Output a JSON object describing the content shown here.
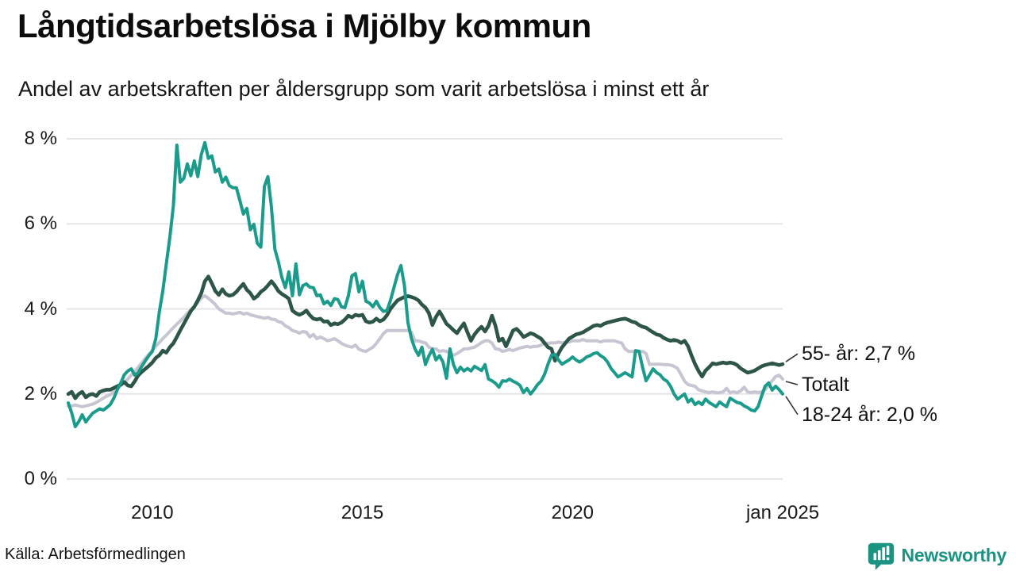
{
  "chart_data": {
    "type": "line",
    "title": "Långtidsarbetslösa i Mjölby kommun",
    "subtitle": "Andel av arbetskraften per åldersgrupp som varit arbetslösa i minst ett år",
    "unit": "%",
    "x_start_year": 2008,
    "x_end_year": 2025,
    "points_per_year": 12,
    "ylim": [
      0,
      8
    ],
    "grid": "horizontal",
    "y_axis_ticks": [
      {
        "label": "0 %",
        "value": 0
      },
      {
        "label": "2 %",
        "value": 2
      },
      {
        "label": "4 %",
        "value": 4
      },
      {
        "label": "6 %",
        "value": 6
      },
      {
        "label": "8 %",
        "value": 8
      }
    ],
    "x_axis_ticks": [
      {
        "label": "2010",
        "year": 2010
      },
      {
        "label": "2015",
        "year": 2015
      },
      {
        "label": "2020",
        "year": 2020
      },
      {
        "label": "jan 2025",
        "year": 2025
      }
    ],
    "series": [
      {
        "name": "Totalt",
        "color": "#c7c5d2",
        "values": [
          1.72,
          1.72,
          1.74,
          1.72,
          1.7,
          1.72,
          1.74,
          1.76,
          1.8,
          1.85,
          1.9,
          1.95,
          1.98,
          2.05,
          2.13,
          2.2,
          2.26,
          2.35,
          2.44,
          2.53,
          2.63,
          2.73,
          2.84,
          2.93,
          3.02,
          3.12,
          3.21,
          3.3,
          3.38,
          3.47,
          3.56,
          3.64,
          3.72,
          3.8,
          3.9,
          3.98,
          4.06,
          4.15,
          4.25,
          4.31,
          4.25,
          4.18,
          4.1,
          4.0,
          3.95,
          3.9,
          3.9,
          3.88,
          3.9,
          3.92,
          3.88,
          3.9,
          3.86,
          3.84,
          3.82,
          3.8,
          3.78,
          3.8,
          3.76,
          3.75,
          3.7,
          3.68,
          3.6,
          3.56,
          3.49,
          3.47,
          3.43,
          3.47,
          3.45,
          3.34,
          3.4,
          3.3,
          3.34,
          3.3,
          3.25,
          3.27,
          3.3,
          3.25,
          3.19,
          3.15,
          3.12,
          3.1,
          3.15,
          3.05,
          3.02,
          3.0,
          3.05,
          3.1,
          3.19,
          3.3,
          3.42,
          3.49,
          3.49,
          3.49,
          3.49,
          3.49,
          3.49,
          3.49,
          3.45,
          3.25,
          3.25,
          3.22,
          3.2,
          3.1,
          3.06,
          3.06,
          3.0,
          3.02,
          3.0,
          2.97,
          2.91,
          2.95,
          3.0,
          3.06,
          3.06,
          3.08,
          3.1,
          3.15,
          3.21,
          3.25,
          3.25,
          3.2,
          3.06,
          3.05,
          3.0,
          3.02,
          3.05,
          3.02,
          3.05,
          3.08,
          3.1,
          3.12,
          3.1,
          3.12,
          3.12,
          3.15,
          3.19,
          3.19,
          3.2,
          3.2,
          3.22,
          3.2,
          3.22,
          3.22,
          3.25,
          3.25,
          3.25,
          3.28,
          3.25,
          3.25,
          3.25,
          3.25,
          3.22,
          3.25,
          3.25,
          3.25,
          3.25,
          3.22,
          3.2,
          3.06,
          3.0,
          3.0,
          3.0,
          3.0,
          3.0,
          2.95,
          2.69,
          2.7,
          2.7,
          2.7,
          2.69,
          2.69,
          2.68,
          2.65,
          2.6,
          2.45,
          2.3,
          2.22,
          2.2,
          2.18,
          2.1,
          2.07,
          2.05,
          2.03,
          2.05,
          2.03,
          2.03,
          2.05,
          2.13,
          2.03,
          2.05,
          2.03,
          2.07,
          2.16,
          2.05,
          2.03,
          2.05,
          2.03,
          2.05,
          2.1,
          2.2,
          2.31,
          2.41,
          2.44,
          2.35
        ]
      },
      {
        "name": "55- år",
        "color": "#2d5548",
        "values": [
          2.0,
          2.05,
          1.9,
          2.0,
          2.05,
          1.92,
          1.98,
          2.0,
          1.95,
          2.05,
          2.08,
          2.1,
          2.1,
          2.14,
          2.18,
          2.22,
          2.28,
          2.2,
          2.18,
          2.3,
          2.44,
          2.52,
          2.59,
          2.66,
          2.74,
          2.85,
          2.91,
          3.02,
          2.97,
          3.1,
          3.19,
          3.34,
          3.5,
          3.65,
          3.8,
          3.95,
          4.05,
          4.2,
          4.37,
          4.65,
          4.76,
          4.6,
          4.42,
          4.33,
          4.46,
          4.35,
          4.31,
          4.33,
          4.4,
          4.5,
          4.59,
          4.45,
          4.37,
          4.24,
          4.3,
          4.4,
          4.46,
          4.55,
          4.65,
          4.55,
          4.42,
          4.35,
          4.3,
          4.24,
          3.96,
          3.9,
          3.86,
          3.9,
          3.96,
          3.85,
          3.77,
          3.75,
          3.77,
          3.7,
          3.71,
          3.62,
          3.66,
          3.64,
          3.68,
          3.75,
          3.84,
          3.8,
          3.86,
          3.84,
          3.86,
          3.71,
          3.68,
          3.7,
          3.77,
          3.71,
          3.75,
          3.85,
          4.0,
          4.1,
          4.2,
          4.24,
          4.28,
          4.3,
          4.28,
          4.25,
          4.2,
          4.1,
          4.03,
          3.9,
          3.62,
          3.81,
          3.94,
          3.8,
          3.65,
          3.58,
          3.5,
          3.43,
          3.55,
          3.66,
          3.45,
          3.25,
          3.4,
          3.5,
          3.58,
          3.47,
          3.6,
          3.84,
          3.6,
          3.25,
          3.3,
          3.12,
          3.3,
          3.49,
          3.53,
          3.45,
          3.34,
          3.38,
          3.43,
          3.4,
          3.35,
          3.3,
          3.2,
          3.1,
          3.06,
          2.78,
          2.95,
          3.1,
          3.2,
          3.3,
          3.35,
          3.4,
          3.42,
          3.45,
          3.5,
          3.55,
          3.6,
          3.62,
          3.6,
          3.65,
          3.68,
          3.7,
          3.72,
          3.74,
          3.76,
          3.77,
          3.74,
          3.7,
          3.68,
          3.62,
          3.58,
          3.56,
          3.5,
          3.45,
          3.4,
          3.38,
          3.32,
          3.28,
          3.25,
          3.27,
          3.25,
          3.2,
          3.25,
          3.12,
          2.9,
          2.7,
          2.54,
          2.41,
          2.55,
          2.63,
          2.72,
          2.7,
          2.72,
          2.74,
          2.72,
          2.74,
          2.72,
          2.68,
          2.6,
          2.55,
          2.5,
          2.52,
          2.55,
          2.6,
          2.65,
          2.68,
          2.7,
          2.72,
          2.7,
          2.68,
          2.7
        ]
      },
      {
        "name": "18-24 år",
        "color": "#1a9b8b",
        "values": [
          1.79,
          1.55,
          1.23,
          1.35,
          1.51,
          1.34,
          1.45,
          1.55,
          1.6,
          1.65,
          1.62,
          1.68,
          1.75,
          1.9,
          2.1,
          2.26,
          2.45,
          2.54,
          2.59,
          2.44,
          2.5,
          2.65,
          2.78,
          2.9,
          3.0,
          3.3,
          3.93,
          4.42,
          5.06,
          5.67,
          6.42,
          7.85,
          6.98,
          7.07,
          7.41,
          7.13,
          7.48,
          7.11,
          7.63,
          7.91,
          7.54,
          7.6,
          7.22,
          7.29,
          6.98,
          7.1,
          6.9,
          6.85,
          6.85,
          6.55,
          6.23,
          6.36,
          5.86,
          5.99,
          5.54,
          5.45,
          6.88,
          7.11,
          6.4,
          5.4,
          5.11,
          4.74,
          4.5,
          4.87,
          4.31,
          5.06,
          4.33,
          4.55,
          4.59,
          4.51,
          4.5,
          4.31,
          4.33,
          4.12,
          4.18,
          4.08,
          4.24,
          4.22,
          4.05,
          4.03,
          4.31,
          4.78,
          4.83,
          4.4,
          4.65,
          4.18,
          4.14,
          4.05,
          4.18,
          4.03,
          3.94,
          3.96,
          4.2,
          4.5,
          4.8,
          5.02,
          4.55,
          3.68,
          3.3,
          3.06,
          2.91,
          3.1,
          2.69,
          2.9,
          3.05,
          2.8,
          2.9,
          2.75,
          2.37,
          3.06,
          2.69,
          2.5,
          2.63,
          2.54,
          2.6,
          2.54,
          2.65,
          2.6,
          2.55,
          2.69,
          2.35,
          2.31,
          2.25,
          2.16,
          2.31,
          2.3,
          2.35,
          2.3,
          2.26,
          2.2,
          2.03,
          2.13,
          2.0,
          2.1,
          2.22,
          2.3,
          2.46,
          2.7,
          2.91,
          2.93,
          2.8,
          2.7,
          2.75,
          2.8,
          2.87,
          2.8,
          2.75,
          2.8,
          2.87,
          2.9,
          2.95,
          2.97,
          2.9,
          2.85,
          2.75,
          2.6,
          2.5,
          2.4,
          2.45,
          2.5,
          2.45,
          2.4,
          3.02,
          3.0,
          2.63,
          2.31,
          2.45,
          2.59,
          2.5,
          2.45,
          2.35,
          2.3,
          2.18,
          2.0,
          1.88,
          1.94,
          2.0,
          1.81,
          1.88,
          1.75,
          1.81,
          1.75,
          1.88,
          1.8,
          1.75,
          1.7,
          1.81,
          1.75,
          1.7,
          1.9,
          1.85,
          1.8,
          1.78,
          1.72,
          1.68,
          1.62,
          1.6,
          1.7,
          1.95,
          2.18,
          2.26,
          2.09,
          2.18,
          2.1,
          2.0
        ]
      }
    ],
    "annotations": [
      {
        "text": "55- år: 2,7 %",
        "series": "55- år"
      },
      {
        "text": "Totalt",
        "series": "Totalt"
      },
      {
        "text": "18-24 år: 2,0 %",
        "series": "18-24 år"
      }
    ],
    "colors": {
      "grid": "#e6e5e9",
      "leader_line": "#333333"
    }
  },
  "source": {
    "label": "Källa: Arbetsförmedlingen"
  },
  "branding": {
    "name": "Newsworthy",
    "color": "#1b9383",
    "icon": "newsworthy-speech-bubble-bar-chart-icon"
  }
}
